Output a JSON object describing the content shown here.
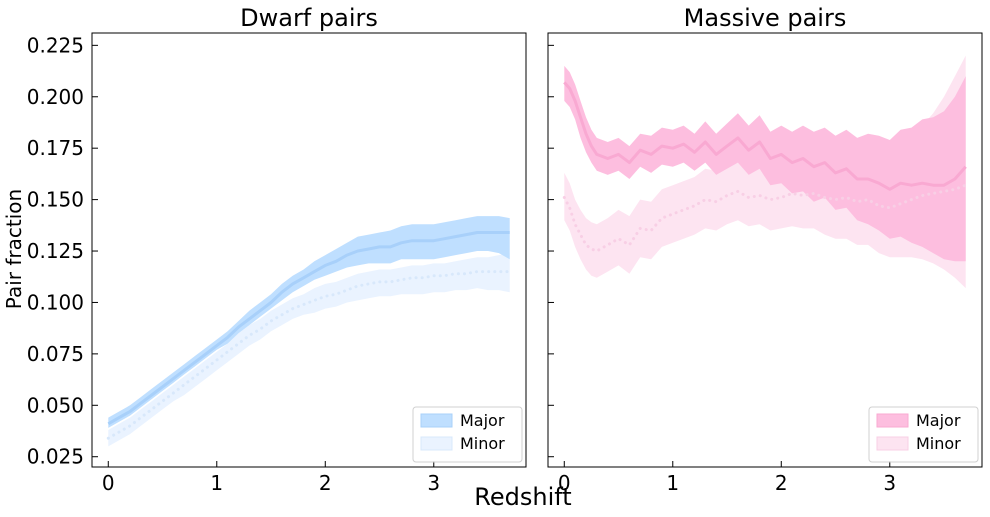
{
  "figure": {
    "xlabel": "Redshift",
    "ylabel": "Pair fraction"
  },
  "chart_data": [
    {
      "type": "line",
      "title": "Dwarf pairs",
      "xlabel": "",
      "ylabel": "Pair fraction",
      "xlim": [
        -0.15,
        3.85
      ],
      "ylim": [
        0.02,
        0.231
      ],
      "xticks": [
        "0",
        "1",
        "2",
        "3"
      ],
      "yticks": [
        "0.025",
        "0.050",
        "0.075",
        "0.100",
        "0.125",
        "0.150",
        "0.175",
        "0.200",
        "0.225"
      ],
      "grid": false,
      "legend_position": "bottom-right",
      "series": [
        {
          "name": "Major",
          "style": "solid-band",
          "color": "#bfdfff",
          "line_color": "#a8d0fa",
          "x": [
            0.0,
            0.1,
            0.2,
            0.3,
            0.4,
            0.5,
            0.6,
            0.7,
            0.8,
            0.9,
            1.0,
            1.1,
            1.2,
            1.3,
            1.4,
            1.5,
            1.6,
            1.7,
            1.8,
            1.9,
            2.0,
            2.1,
            2.2,
            2.3,
            2.4,
            2.5,
            2.6,
            2.7,
            2.8,
            2.9,
            3.0,
            3.1,
            3.2,
            3.3,
            3.4,
            3.5,
            3.6,
            3.7
          ],
          "y": [
            0.041,
            0.044,
            0.047,
            0.051,
            0.055,
            0.059,
            0.063,
            0.067,
            0.071,
            0.075,
            0.079,
            0.083,
            0.088,
            0.092,
            0.096,
            0.1,
            0.105,
            0.109,
            0.112,
            0.115,
            0.118,
            0.12,
            0.123,
            0.125,
            0.126,
            0.127,
            0.127,
            0.129,
            0.13,
            0.13,
            0.13,
            0.131,
            0.132,
            0.133,
            0.134,
            0.134,
            0.134,
            0.134
          ],
          "lower": [
            0.039,
            0.042,
            0.045,
            0.049,
            0.053,
            0.057,
            0.061,
            0.065,
            0.069,
            0.073,
            0.077,
            0.08,
            0.085,
            0.089,
            0.093,
            0.097,
            0.101,
            0.105,
            0.108,
            0.111,
            0.113,
            0.115,
            0.117,
            0.118,
            0.119,
            0.119,
            0.119,
            0.121,
            0.121,
            0.121,
            0.121,
            0.122,
            0.123,
            0.124,
            0.125,
            0.125,
            0.124,
            0.121
          ],
          "upper": [
            0.044,
            0.047,
            0.05,
            0.054,
            0.058,
            0.062,
            0.066,
            0.07,
            0.074,
            0.078,
            0.082,
            0.086,
            0.091,
            0.096,
            0.1,
            0.104,
            0.109,
            0.113,
            0.116,
            0.12,
            0.123,
            0.126,
            0.129,
            0.132,
            0.133,
            0.134,
            0.135,
            0.137,
            0.138,
            0.138,
            0.138,
            0.139,
            0.14,
            0.141,
            0.142,
            0.142,
            0.142,
            0.141
          ]
        },
        {
          "name": "Minor",
          "style": "dotted-band",
          "color": "#eaf3ff",
          "line_color": "#d8e8fb",
          "x": [
            0.0,
            0.1,
            0.2,
            0.3,
            0.4,
            0.5,
            0.6,
            0.7,
            0.8,
            0.9,
            1.0,
            1.1,
            1.2,
            1.3,
            1.4,
            1.5,
            1.6,
            1.7,
            1.8,
            1.9,
            2.0,
            2.1,
            2.2,
            2.3,
            2.4,
            2.5,
            2.6,
            2.7,
            2.8,
            2.9,
            3.0,
            3.1,
            3.2,
            3.3,
            3.4,
            3.5,
            3.6,
            3.7
          ],
          "y": [
            0.034,
            0.037,
            0.04,
            0.044,
            0.048,
            0.052,
            0.056,
            0.06,
            0.064,
            0.068,
            0.072,
            0.076,
            0.08,
            0.084,
            0.087,
            0.091,
            0.094,
            0.097,
            0.099,
            0.101,
            0.103,
            0.104,
            0.106,
            0.108,
            0.109,
            0.11,
            0.11,
            0.111,
            0.112,
            0.112,
            0.113,
            0.113,
            0.114,
            0.114,
            0.115,
            0.115,
            0.115,
            0.115
          ],
          "lower": [
            0.03,
            0.033,
            0.036,
            0.04,
            0.044,
            0.048,
            0.052,
            0.055,
            0.059,
            0.063,
            0.067,
            0.071,
            0.075,
            0.079,
            0.082,
            0.086,
            0.089,
            0.092,
            0.094,
            0.095,
            0.097,
            0.098,
            0.1,
            0.101,
            0.102,
            0.103,
            0.103,
            0.104,
            0.104,
            0.104,
            0.105,
            0.105,
            0.106,
            0.106,
            0.107,
            0.106,
            0.106,
            0.105
          ],
          "upper": [
            0.038,
            0.041,
            0.044,
            0.048,
            0.052,
            0.056,
            0.06,
            0.064,
            0.068,
            0.072,
            0.076,
            0.08,
            0.085,
            0.089,
            0.092,
            0.096,
            0.099,
            0.102,
            0.104,
            0.107,
            0.109,
            0.11,
            0.112,
            0.114,
            0.115,
            0.116,
            0.116,
            0.117,
            0.118,
            0.118,
            0.119,
            0.119,
            0.12,
            0.121,
            0.122,
            0.122,
            0.123,
            0.124
          ]
        }
      ]
    },
    {
      "type": "line",
      "title": "Massive pairs",
      "xlabel": "",
      "ylabel": "",
      "xlim": [
        -0.15,
        3.85
      ],
      "ylim": [
        0.02,
        0.231
      ],
      "xticks": [
        "0",
        "1",
        "2",
        "3"
      ],
      "yticks": [],
      "grid": false,
      "legend_position": "bottom-right",
      "series": [
        {
          "name": "Major",
          "style": "solid-band",
          "color": "#fdbedf",
          "line_color": "#f9a9d2",
          "x": [
            0.0,
            0.05,
            0.1,
            0.15,
            0.2,
            0.25,
            0.3,
            0.4,
            0.5,
            0.6,
            0.7,
            0.8,
            0.9,
            1.0,
            1.1,
            1.2,
            1.3,
            1.4,
            1.5,
            1.6,
            1.7,
            1.8,
            1.9,
            2.0,
            2.1,
            2.2,
            2.3,
            2.4,
            2.5,
            2.6,
            2.7,
            2.8,
            2.9,
            3.0,
            3.1,
            3.2,
            3.3,
            3.4,
            3.5,
            3.6,
            3.7
          ],
          "y": [
            0.207,
            0.204,
            0.198,
            0.19,
            0.182,
            0.176,
            0.172,
            0.17,
            0.172,
            0.168,
            0.174,
            0.172,
            0.176,
            0.175,
            0.177,
            0.173,
            0.178,
            0.172,
            0.176,
            0.18,
            0.174,
            0.178,
            0.17,
            0.172,
            0.168,
            0.17,
            0.166,
            0.168,
            0.163,
            0.165,
            0.16,
            0.16,
            0.158,
            0.155,
            0.158,
            0.157,
            0.158,
            0.157,
            0.157,
            0.16,
            0.166
          ],
          "lower": [
            0.198,
            0.195,
            0.189,
            0.18,
            0.173,
            0.168,
            0.164,
            0.162,
            0.164,
            0.16,
            0.166,
            0.163,
            0.167,
            0.166,
            0.168,
            0.164,
            0.168,
            0.162,
            0.165,
            0.168,
            0.162,
            0.165,
            0.157,
            0.158,
            0.153,
            0.154,
            0.149,
            0.151,
            0.145,
            0.146,
            0.14,
            0.138,
            0.135,
            0.131,
            0.132,
            0.129,
            0.127,
            0.124,
            0.121,
            0.12,
            0.12
          ],
          "upper": [
            0.215,
            0.212,
            0.206,
            0.198,
            0.19,
            0.184,
            0.18,
            0.178,
            0.18,
            0.176,
            0.182,
            0.181,
            0.185,
            0.184,
            0.186,
            0.182,
            0.188,
            0.182,
            0.187,
            0.192,
            0.186,
            0.191,
            0.183,
            0.186,
            0.183,
            0.186,
            0.183,
            0.185,
            0.181,
            0.184,
            0.18,
            0.182,
            0.181,
            0.179,
            0.184,
            0.185,
            0.189,
            0.19,
            0.193,
            0.2,
            0.21
          ]
        },
        {
          "name": "Minor",
          "style": "dotted-band",
          "color": "#fde4f1",
          "line_color": "#f8cfe5",
          "x": [
            0.0,
            0.05,
            0.1,
            0.15,
            0.2,
            0.25,
            0.3,
            0.4,
            0.5,
            0.6,
            0.7,
            0.8,
            0.9,
            1.0,
            1.1,
            1.2,
            1.3,
            1.4,
            1.5,
            1.6,
            1.7,
            1.8,
            1.9,
            2.0,
            2.1,
            2.2,
            2.3,
            2.4,
            2.5,
            2.6,
            2.7,
            2.8,
            2.9,
            3.0,
            3.1,
            3.2,
            3.3,
            3.4,
            3.5,
            3.6,
            3.7
          ],
          "y": [
            0.151,
            0.146,
            0.138,
            0.133,
            0.128,
            0.126,
            0.125,
            0.128,
            0.131,
            0.128,
            0.136,
            0.135,
            0.141,
            0.143,
            0.145,
            0.147,
            0.15,
            0.149,
            0.152,
            0.154,
            0.151,
            0.152,
            0.15,
            0.151,
            0.153,
            0.152,
            0.153,
            0.151,
            0.15,
            0.151,
            0.149,
            0.15,
            0.147,
            0.146,
            0.148,
            0.15,
            0.152,
            0.153,
            0.154,
            0.155,
            0.157
          ],
          "lower": [
            0.14,
            0.135,
            0.127,
            0.121,
            0.116,
            0.113,
            0.112,
            0.115,
            0.118,
            0.114,
            0.122,
            0.121,
            0.127,
            0.129,
            0.131,
            0.133,
            0.136,
            0.135,
            0.138,
            0.14,
            0.137,
            0.138,
            0.135,
            0.136,
            0.137,
            0.136,
            0.136,
            0.133,
            0.131,
            0.131,
            0.128,
            0.128,
            0.124,
            0.122,
            0.122,
            0.122,
            0.121,
            0.119,
            0.116,
            0.112,
            0.107
          ],
          "upper": [
            0.163,
            0.158,
            0.15,
            0.145,
            0.141,
            0.139,
            0.138,
            0.141,
            0.145,
            0.142,
            0.15,
            0.149,
            0.155,
            0.157,
            0.159,
            0.161,
            0.165,
            0.164,
            0.167,
            0.169,
            0.166,
            0.167,
            0.165,
            0.167,
            0.169,
            0.169,
            0.171,
            0.17,
            0.17,
            0.172,
            0.171,
            0.173,
            0.172,
            0.172,
            0.176,
            0.18,
            0.186,
            0.192,
            0.2,
            0.21,
            0.22
          ]
        }
      ]
    }
  ]
}
